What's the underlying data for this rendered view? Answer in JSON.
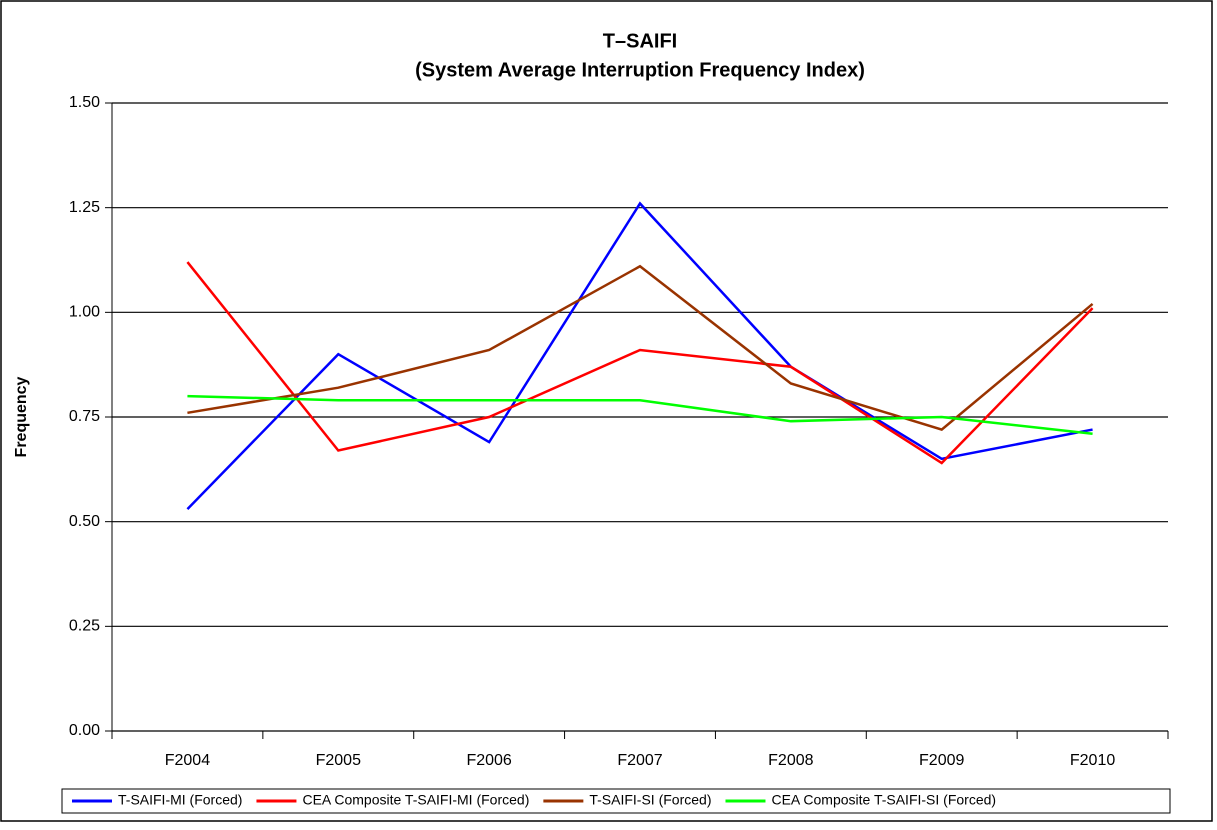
{
  "chart_data": {
    "type": "line",
    "title": "T–SAIFI",
    "subtitle": "(System Average Interruption Frequency Index)",
    "y_label": "Frequency",
    "categories": [
      "F2004",
      "F2005",
      "F2006",
      "F2007",
      "F2008",
      "F2009",
      "F2010"
    ],
    "series": [
      {
        "name": "T-SAIFI-MI (Forced)",
        "color": "#0000ff",
        "values": [
          0.53,
          0.9,
          0.69,
          1.26,
          0.87,
          0.65,
          0.72
        ]
      },
      {
        "name": "CEA Composite T-SAIFI-MI (Forced)",
        "color": "#ff0000",
        "values": [
          1.12,
          0.67,
          0.75,
          0.91,
          0.87,
          0.64,
          1.01
        ]
      },
      {
        "name": "T-SAIFI-SI (Forced)",
        "color": "#993300",
        "values": [
          0.76,
          0.82,
          0.91,
          1.11,
          0.83,
          0.72,
          1.02
        ]
      },
      {
        "name": "CEA Composite T-SAIFI-SI (Forced)",
        "color": "#00ff00",
        "values": [
          0.8,
          0.79,
          0.79,
          0.79,
          0.74,
          0.75,
          0.71
        ]
      }
    ],
    "ylim": [
      0,
      1.5
    ],
    "yticks": [
      {
        "value": 0,
        "label": "0.00"
      },
      0.25,
      {
        "value": 0.5,
        "label": "0.50"
      },
      0.75,
      {
        "value": 1,
        "label": "1.00"
      },
      1.25,
      {
        "value": 1.5,
        "label": "1.50"
      }
    ],
    "grid": true,
    "legend": "bottom"
  }
}
